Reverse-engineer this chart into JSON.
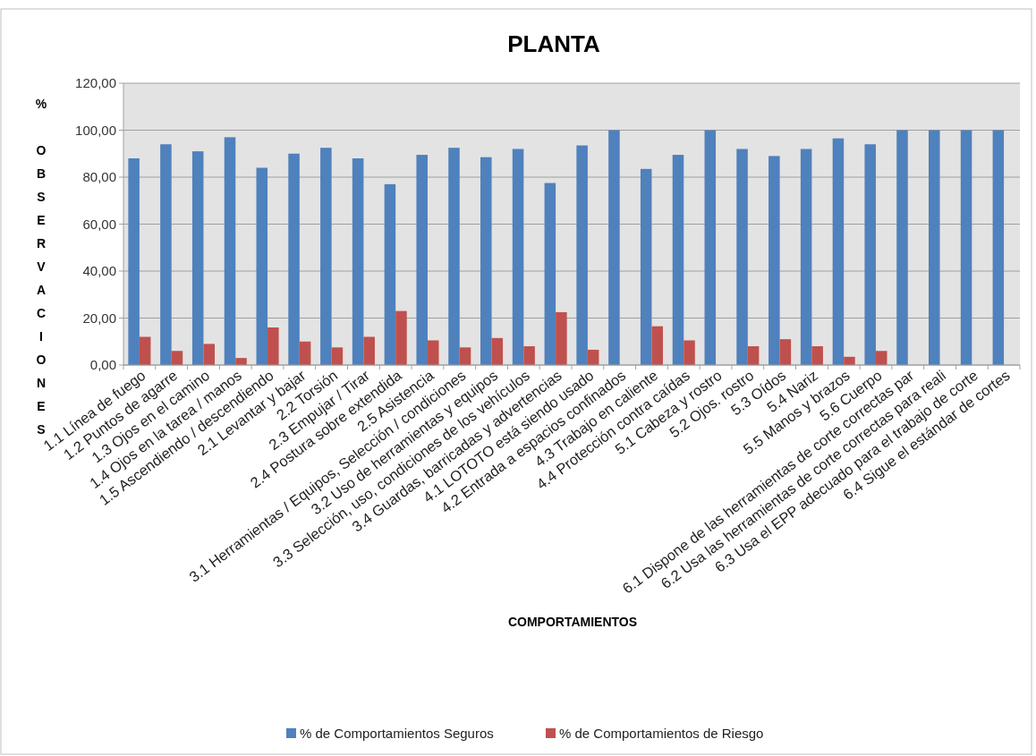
{
  "chart_data": {
    "type": "bar",
    "title": "PLANTA",
    "xlabel": "COMPORTAMIENTOS",
    "ylabel": "% OBSERVACIONES",
    "categories": [
      "1.1 Línea de fuego",
      "1.2 Puntos de agarre",
      "1.3 Ojos en el camino",
      "1.4 Ojos en la tarea / manos",
      "1.5 Ascendiendo / descendiendo",
      "2.1 Levantar y bajar",
      "2.2 Torsión",
      "2.3 Empujar / Tirar",
      "2.4 Postura sobre extendida",
      "2.5 Asistencia",
      "3.1 Herramientas / Equipos, Selección / condiciones",
      "3.2 Uso de herramientas y equipos",
      "3.3 Selección, uso, condiciones de los vehículos",
      "3.4 Guardas, barricadas y advertencias",
      "4.1 LOTOTO está siendo usado",
      "4.2 Entrada a espacios confinados",
      "4.3 Trabajo en caliente",
      "4.4 Protección contra caídas",
      "5.1 Cabeza y rostro",
      "5.2 Ojos. rostro",
      "5.3 Oídos",
      "5.4 Nariz",
      "5.5 Manos y brazos",
      "5.6 Cuerpo",
      "6.1 Dispone de las herramientas de corte correctas par",
      "6.2 Usa las herramientas de corte correctas para reali",
      "6.3 Usa el EPP adecuado para el trabajo de corte",
      "6.4 Sigue el estándar de cortes"
    ],
    "series": [
      {
        "name": "% de Comportamientos Seguros",
        "color": "#4f81bd",
        "values": [
          88,
          94,
          91,
          97,
          84,
          90,
          92.5,
          88,
          77,
          89.5,
          92.5,
          88.5,
          92,
          77.5,
          93.5,
          100,
          83.5,
          89.5,
          100,
          92,
          89,
          92,
          96.5,
          94,
          100,
          100,
          100,
          100
        ]
      },
      {
        "name": "% de Comportamientos de Riesgo",
        "color": "#c0504d",
        "values": [
          12,
          6,
          9,
          3,
          16,
          10,
          7.5,
          12,
          23,
          10.5,
          7.5,
          11.5,
          8,
          22.5,
          6.5,
          0,
          16.5,
          10.5,
          0,
          8,
          11,
          8,
          3.5,
          6,
          0,
          0,
          0,
          0
        ]
      }
    ],
    "ylim": [
      0,
      120
    ],
    "yticks": [
      {
        "value": 0,
        "label": "0,00"
      },
      {
        "value": 20,
        "label": "20,00"
      },
      {
        "value": 40,
        "label": "40,00"
      },
      {
        "value": 60,
        "label": "60,00"
      },
      {
        "value": 80,
        "label": "80,00"
      },
      {
        "value": 100,
        "label": "100,00"
      },
      {
        "value": 120,
        "label": "120,00"
      }
    ],
    "grid": "y",
    "legend": "bottom"
  }
}
